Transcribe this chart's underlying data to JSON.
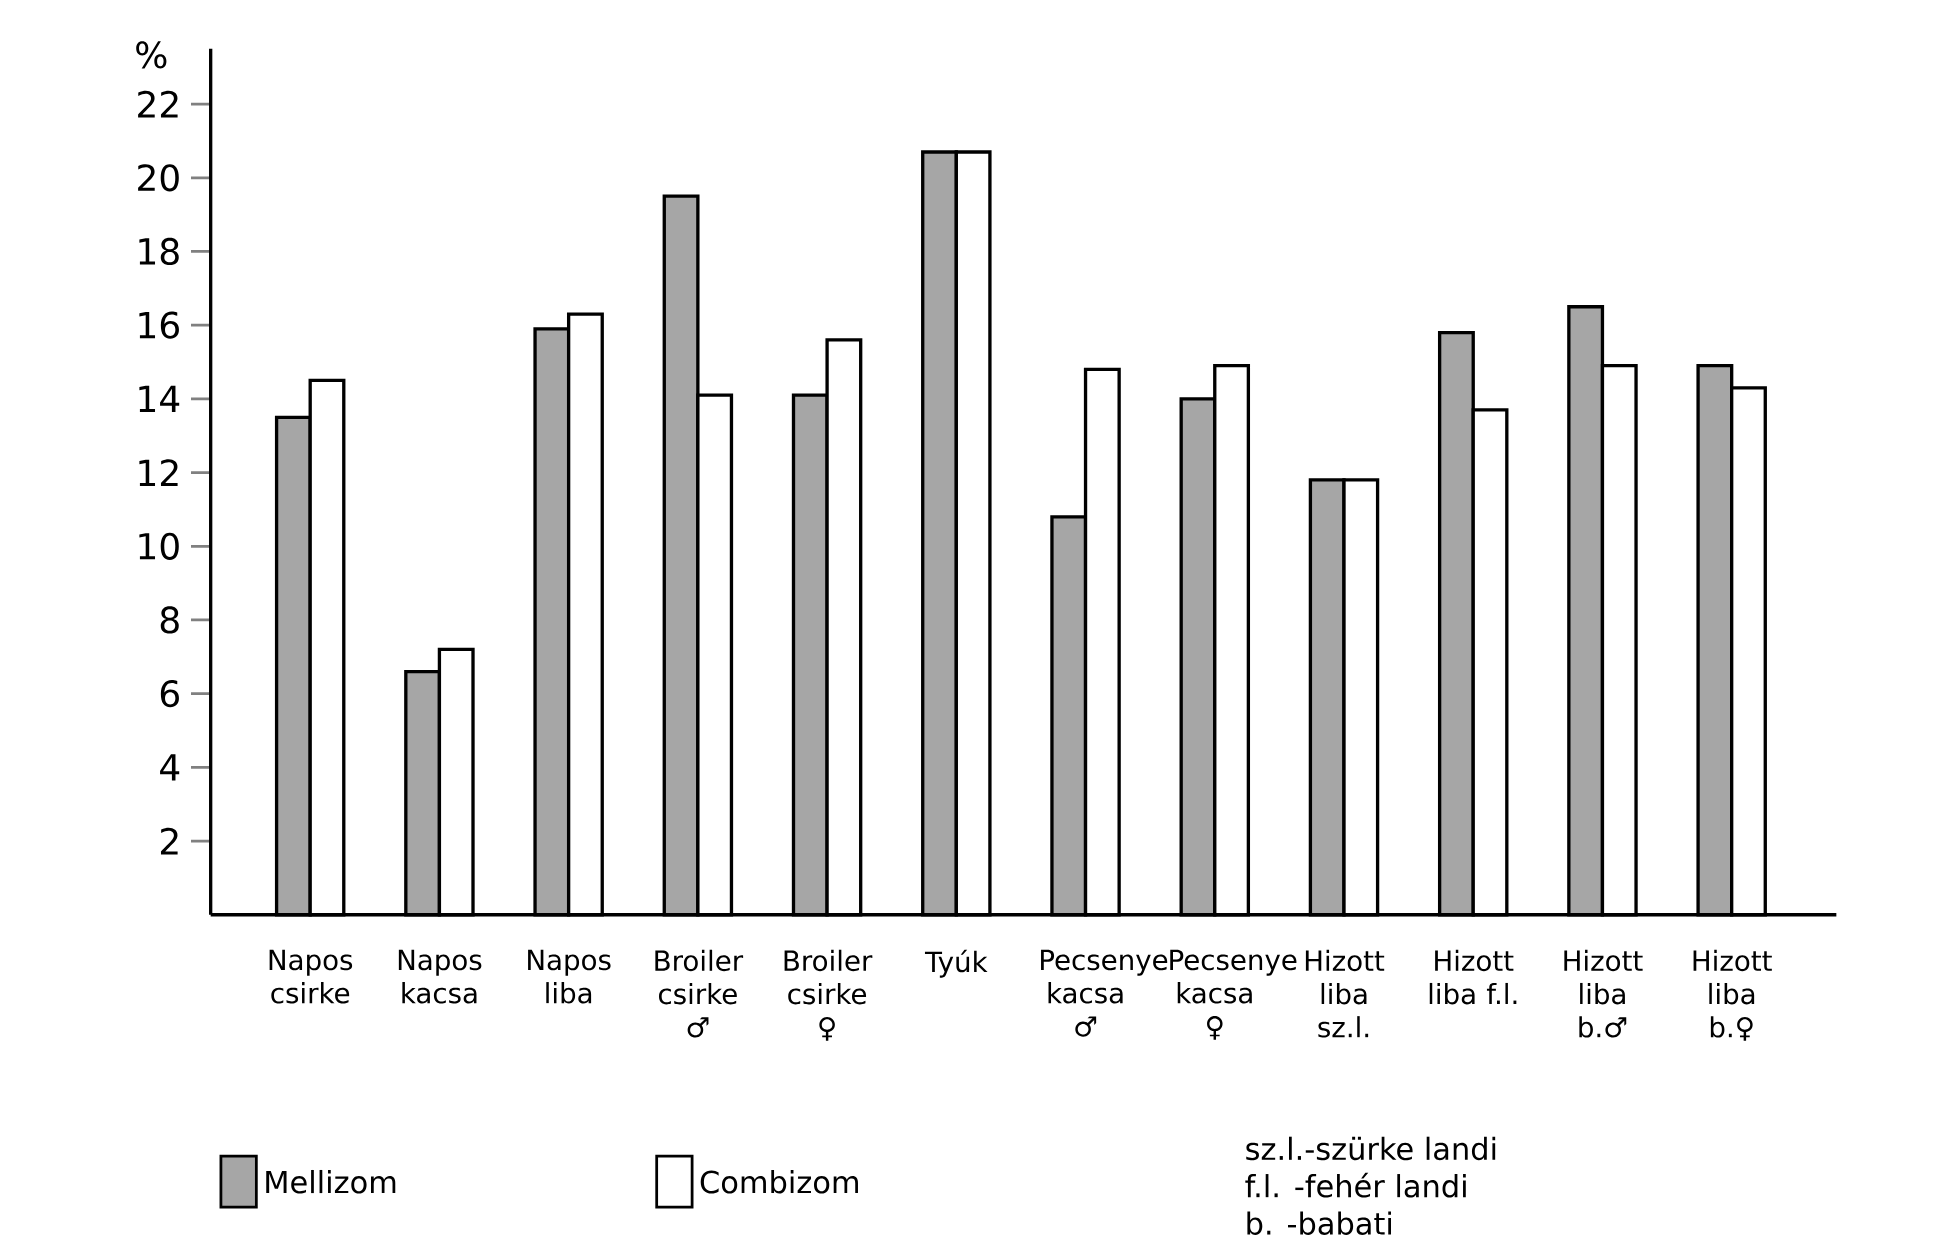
{
  "chart_data": {
    "type": "bar",
    "ylabel": "%",
    "categories": [
      "Napos csirke",
      "Napos kacsa",
      "Napos liba",
      "Broiler csirke ♂",
      "Broiler csirke ♀",
      "Tyúk",
      "Pecsenye kacsa ♂",
      "Pecsenye kacsa ♀",
      "Hizott liba sz.l.",
      "Hizott liba f.l.",
      "Hizott liba b.♂",
      "Hizott liba b.♀"
    ],
    "series": [
      {
        "name": "Mellizom",
        "color": "#a6a6a6",
        "values": [
          13.5,
          6.6,
          15.9,
          19.5,
          14.1,
          20.7,
          10.8,
          14.0,
          11.8,
          15.8,
          16.5,
          14.9
        ]
      },
      {
        "name": "Combizom",
        "color": "#ffffff",
        "values": [
          14.5,
          7.2,
          16.3,
          14.1,
          15.6,
          20.7,
          14.8,
          14.9,
          11.8,
          13.7,
          14.9,
          14.3
        ]
      }
    ],
    "ylim": [
      0,
      23.5
    ],
    "yticks": [
      2,
      4,
      6,
      8,
      10,
      12,
      14,
      16,
      18,
      20,
      22
    ],
    "grid": false,
    "legend": "bottom",
    "annotations": [
      "sz.l.-szürke landi",
      "f.l. -fehér landi",
      "b. -babati"
    ]
  }
}
